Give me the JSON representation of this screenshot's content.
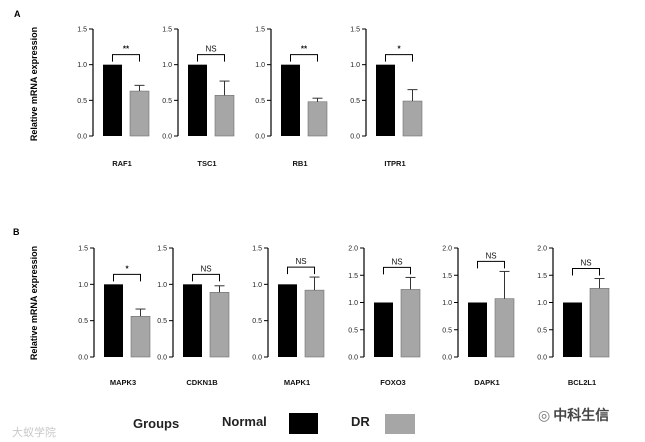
{
  "panels": {
    "a": "A",
    "b": "B"
  },
  "ylabel": "Relative mRNA expression",
  "legend": {
    "title": "Groups",
    "items": [
      {
        "label": "Normal",
        "color": "#000000"
      },
      {
        "label": "DR",
        "color": "#a6a6a6"
      }
    ]
  },
  "watermark_left": "大蚁学院",
  "watermark_right": "中科生信",
  "chart_data": [
    {
      "type": "bar",
      "gene": "RAF1",
      "panel": "A",
      "categories": [
        "Normal",
        "DR"
      ],
      "values": [
        1.0,
        0.63
      ],
      "errors": [
        0,
        0.08
      ],
      "sig": "**",
      "ylim": [
        0,
        1.5
      ],
      "yticks": [
        "0.0",
        "0.5",
        "1.0",
        "1.5"
      ]
    },
    {
      "type": "bar",
      "gene": "TSC1",
      "panel": "A",
      "categories": [
        "Normal",
        "DR"
      ],
      "values": [
        1.0,
        0.57
      ],
      "errors": [
        0,
        0.2
      ],
      "sig": "NS",
      "ylim": [
        0,
        1.5
      ],
      "yticks": [
        "0.0",
        "0.5",
        "1.0",
        "1.5"
      ]
    },
    {
      "type": "bar",
      "gene": "RB1",
      "panel": "A",
      "categories": [
        "Normal",
        "DR"
      ],
      "values": [
        1.0,
        0.48
      ],
      "errors": [
        0,
        0.05
      ],
      "sig": "**",
      "ylim": [
        0,
        1.5
      ],
      "yticks": [
        "0.0",
        "0.5",
        "1.0",
        "1.5"
      ]
    },
    {
      "type": "bar",
      "gene": "ITPR1",
      "panel": "A",
      "categories": [
        "Normal",
        "DR"
      ],
      "values": [
        1.0,
        0.49
      ],
      "errors": [
        0,
        0.16
      ],
      "sig": "*",
      "ylim": [
        0,
        1.5
      ],
      "yticks": [
        "0.0",
        "0.5",
        "1.0",
        "1.5"
      ]
    },
    {
      "type": "bar",
      "gene": "MAPK3",
      "panel": "B",
      "categories": [
        "Normal",
        "DR"
      ],
      "values": [
        1.0,
        0.56
      ],
      "errors": [
        0,
        0.1
      ],
      "sig": "*",
      "ylim": [
        0,
        1.5
      ],
      "yticks": [
        "0.0",
        "0.5",
        "1.0",
        "1.5"
      ]
    },
    {
      "type": "bar",
      "gene": "CDKN1B",
      "panel": "B",
      "categories": [
        "Normal",
        "DR"
      ],
      "values": [
        1.0,
        0.89
      ],
      "errors": [
        0,
        0.09
      ],
      "sig": "NS",
      "ylim": [
        0,
        1.5
      ],
      "yticks": [
        "0.0",
        "0.5",
        "1.0",
        "1.5"
      ]
    },
    {
      "type": "bar",
      "gene": "MAPK1",
      "panel": "B",
      "categories": [
        "Normal",
        "DR"
      ],
      "values": [
        1.0,
        0.92
      ],
      "errors": [
        0,
        0.18
      ],
      "sig": "NS",
      "ylim": [
        0,
        1.5
      ],
      "yticks": [
        "0.0",
        "0.5",
        "1.0",
        "1.5"
      ]
    },
    {
      "type": "bar",
      "gene": "FOXO3",
      "panel": "B",
      "categories": [
        "Normal",
        "DR"
      ],
      "values": [
        1.0,
        1.24
      ],
      "errors": [
        0,
        0.22
      ],
      "sig": "NS",
      "ylim": [
        0,
        2.0
      ],
      "yticks": [
        "0.0",
        "0.5",
        "1.0",
        "1.5",
        "2.0"
      ]
    },
    {
      "type": "bar",
      "gene": "DAPK1",
      "panel": "B",
      "categories": [
        "Normal",
        "DR"
      ],
      "values": [
        1.0,
        1.07
      ],
      "errors": [
        0,
        0.5
      ],
      "sig": "NS",
      "ylim": [
        0,
        2.0
      ],
      "yticks": [
        "0.0",
        "0.5",
        "1.0",
        "1.5",
        "2.0"
      ]
    },
    {
      "type": "bar",
      "gene": "BCL2L1",
      "panel": "B",
      "categories": [
        "Normal",
        "DR"
      ],
      "values": [
        1.0,
        1.26
      ],
      "errors": [
        0,
        0.18
      ],
      "sig": "NS",
      "ylim": [
        0,
        2.0
      ],
      "yticks": [
        "0.0",
        "0.5",
        "1.0",
        "1.5",
        "2.0"
      ]
    }
  ]
}
